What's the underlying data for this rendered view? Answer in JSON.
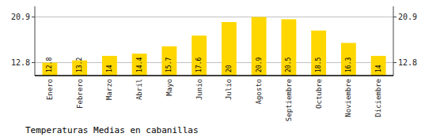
{
  "chart_data": {
    "type": "bar",
    "title": "Temperaturas Medias en cabanillas",
    "categories": [
      "Enero",
      "Febrero",
      "Marzo",
      "Abril",
      "Mayo",
      "Junio",
      "Julio",
      "Agosto",
      "Septiembre",
      "Octubre",
      "Noviembre",
      "Diciembre"
    ],
    "values": [
      12.8,
      13.2,
      14.0,
      14.4,
      15.7,
      17.6,
      20.0,
      20.9,
      20.5,
      18.5,
      16.3,
      14.0
    ],
    "color": "#FFD700",
    "ylim": [
      10.5,
      22.8
    ],
    "yticks": [
      12.8,
      20.9
    ],
    "y2lim": [
      10.5,
      22.8
    ],
    "y2ticks": [
      12.8,
      20.9
    ],
    "grid": true,
    "data_labels": true
  }
}
